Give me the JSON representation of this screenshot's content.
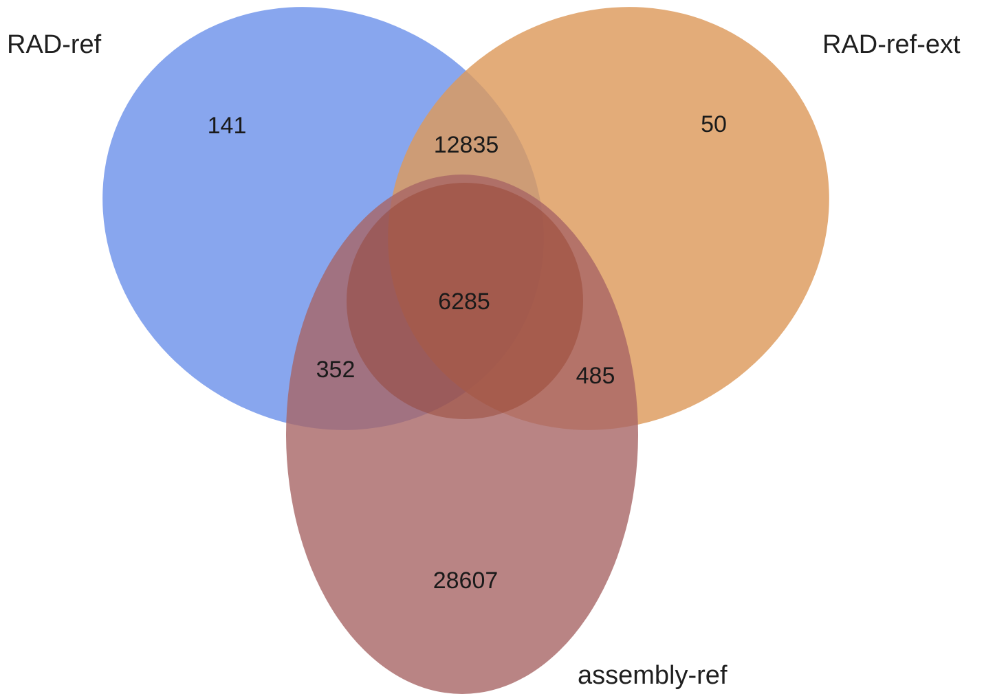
{
  "sets": [
    {
      "key": "rad_ref",
      "label": "RAD-ref",
      "color": "#7b9cec"
    },
    {
      "key": "rad_ref_ext",
      "label": "RAD-ref-ext",
      "color": "#dd9a5c"
    },
    {
      "key": "assembly_ref",
      "label": "assembly-ref",
      "color": "#a86565"
    }
  ],
  "regions": {
    "rad_ref_only": "141",
    "rad_ref_ext_only": "50",
    "rad_ref_and_rad_ref_ext": "12835",
    "all_three": "6285",
    "rad_ref_and_assembly_ref": "352",
    "rad_ref_ext_and_assembly_ref": "485",
    "assembly_ref_only": "28607"
  }
}
